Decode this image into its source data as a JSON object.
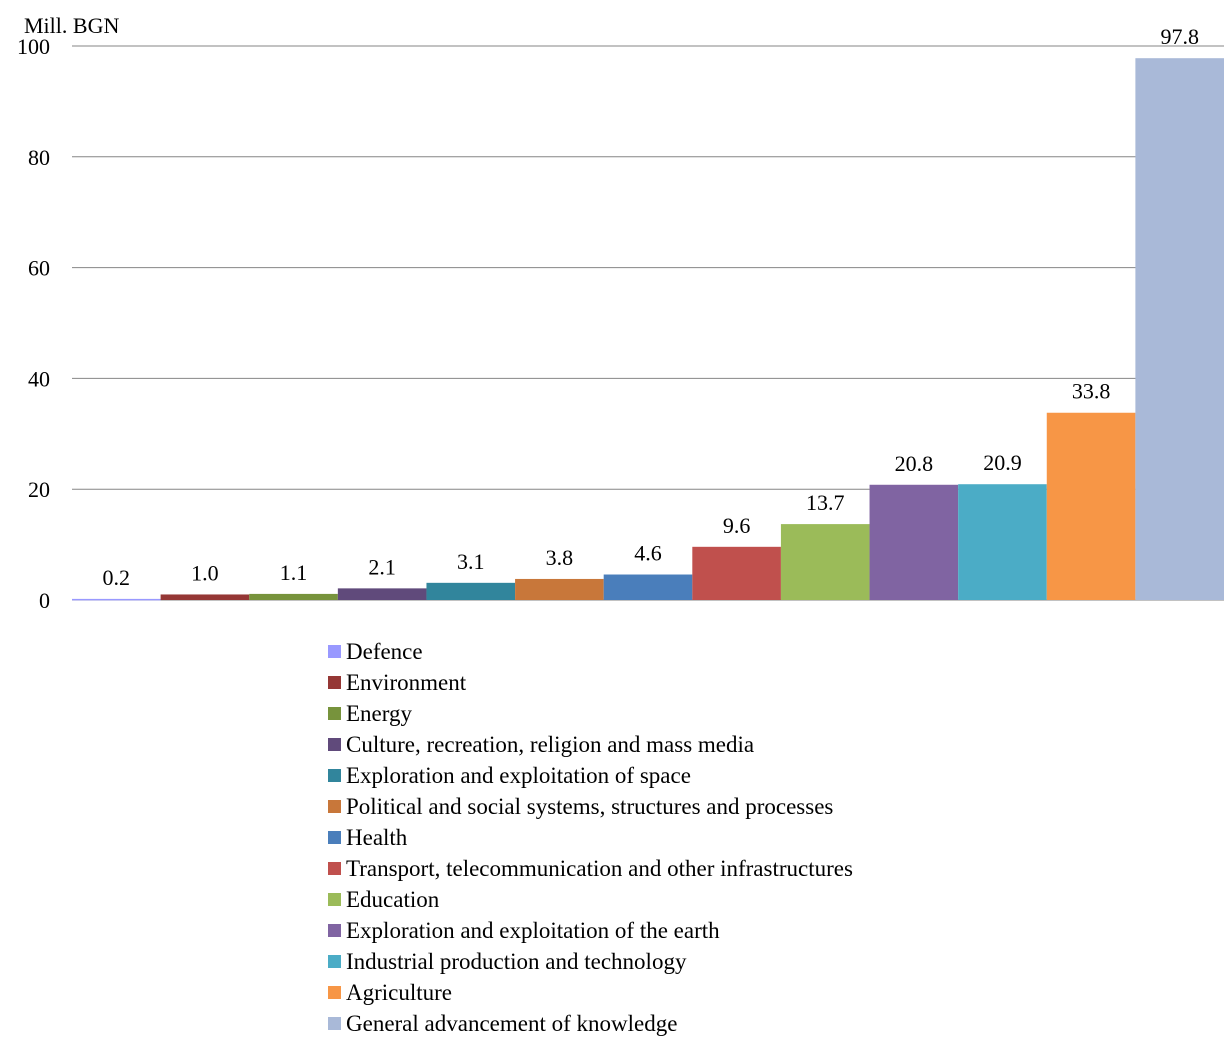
{
  "chart_data": {
    "type": "bar",
    "ylabel": "Mill. BGN",
    "ylim": [
      0,
      100
    ],
    "yticks": [
      "0",
      "20",
      "40",
      "60",
      "80",
      "100"
    ],
    "grid": true,
    "legend_position": "bottom",
    "series": [
      {
        "name": "Defence",
        "value": 0.2,
        "label": "0.2",
        "color": "#9999ff"
      },
      {
        "name": "Environment",
        "value": 1.0,
        "label": "1.0",
        "color": "#953735"
      },
      {
        "name": "Energy",
        "value": 1.1,
        "label": "1.1",
        "color": "#77933c"
      },
      {
        "name": "Culture, recreation, religion and mass media",
        "value": 2.1,
        "label": "2.1",
        "color": "#604a7b"
      },
      {
        "name": "Exploration and exploitation of space",
        "value": 3.1,
        "label": "3.1",
        "color": "#31859c"
      },
      {
        "name": "Political and social systems, structures and processes",
        "value": 3.8,
        "label": "3.8",
        "color": "#c8773a"
      },
      {
        "name": "Health",
        "value": 4.6,
        "label": "4.6",
        "color": "#4a7ebb"
      },
      {
        "name": "Transport, telecommunication and other infrastructures",
        "value": 9.6,
        "label": "9.6",
        "color": "#c0504d"
      },
      {
        "name": "Education",
        "value": 13.7,
        "label": "13.7",
        "color": "#9bbb59"
      },
      {
        "name": "Exploration and exploitation of the earth",
        "value": 20.8,
        "label": "20.8",
        "color": "#8064a2"
      },
      {
        "name": "Industrial production and technology",
        "value": 20.9,
        "label": "20.9",
        "color": "#4bacc6"
      },
      {
        "name": "Agriculture",
        "value": 33.8,
        "label": "33.8",
        "color": "#f79646"
      },
      {
        "name": "General advancement of knowledge",
        "value": 97.8,
        "label": "97.8",
        "color": "#a9b9d8"
      }
    ]
  }
}
